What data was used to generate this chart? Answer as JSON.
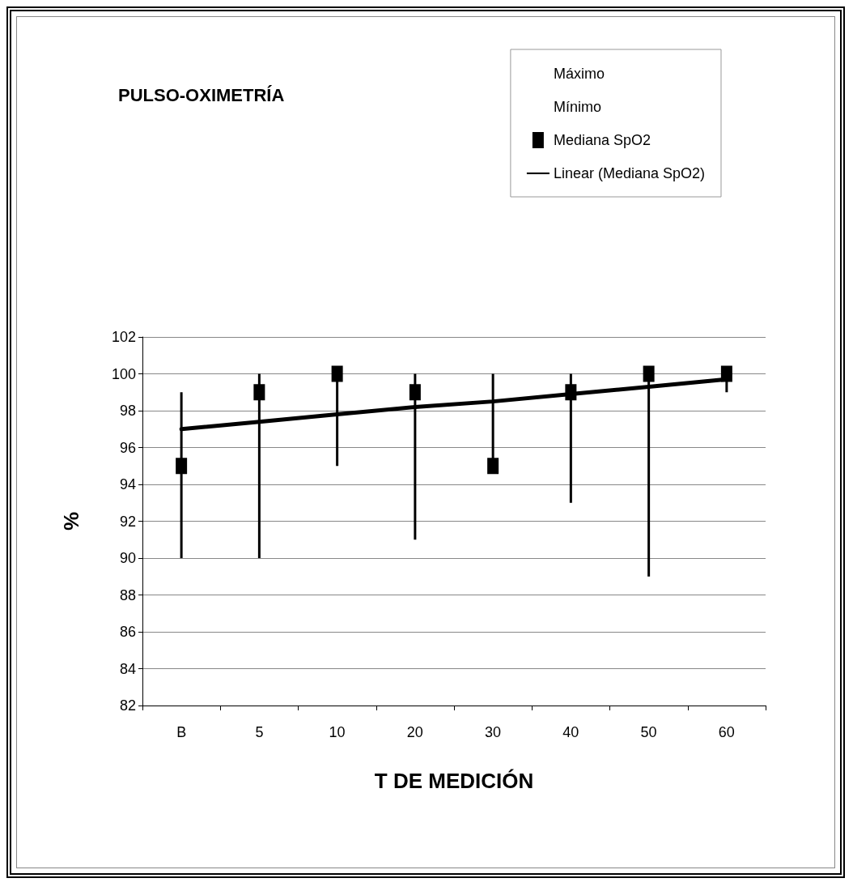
{
  "chart_data": {
    "type": "scatter",
    "title": "PULSO-OXIMETRÍA",
    "xlabel": "T DE MEDICIÓN",
    "ylabel": "%",
    "categories": [
      "B",
      "5",
      "10",
      "20",
      "30",
      "40",
      "50",
      "60"
    ],
    "series": [
      {
        "name": "Máximo",
        "type": "scatter",
        "marker": "none",
        "color": "#000000",
        "values": [
          null,
          null,
          null,
          null,
          null,
          null,
          null,
          null
        ]
      },
      {
        "name": "Mínimo",
        "type": "scatter",
        "marker": "none",
        "color": "#000000",
        "values": [
          null,
          null,
          null,
          null,
          null,
          null,
          null,
          null
        ]
      },
      {
        "name": "Mediana SpO2",
        "type": "scatter",
        "marker": "square",
        "color": "#000000",
        "values": [
          95,
          99,
          100,
          99,
          95,
          99,
          100,
          100
        ],
        "errors": [
          [
            90,
            99
          ],
          [
            90,
            100
          ],
          [
            95,
            100
          ],
          [
            91,
            100
          ],
          [
            95,
            100
          ],
          [
            93,
            100
          ],
          [
            89,
            100
          ],
          [
            99,
            100
          ]
        ]
      },
      {
        "name": "Linear (Mediana SpO2)",
        "type": "line",
        "marker": "none",
        "color": "#000000",
        "values": [
          97.0,
          97.4,
          97.8,
          98.2,
          98.5,
          98.9,
          99.3,
          99.7
        ]
      }
    ],
    "ylim": [
      82,
      102
    ],
    "yticks": [
      82,
      84,
      86,
      88,
      90,
      92,
      94,
      96,
      98,
      100,
      102
    ],
    "grid": "y",
    "legend": "top right"
  }
}
